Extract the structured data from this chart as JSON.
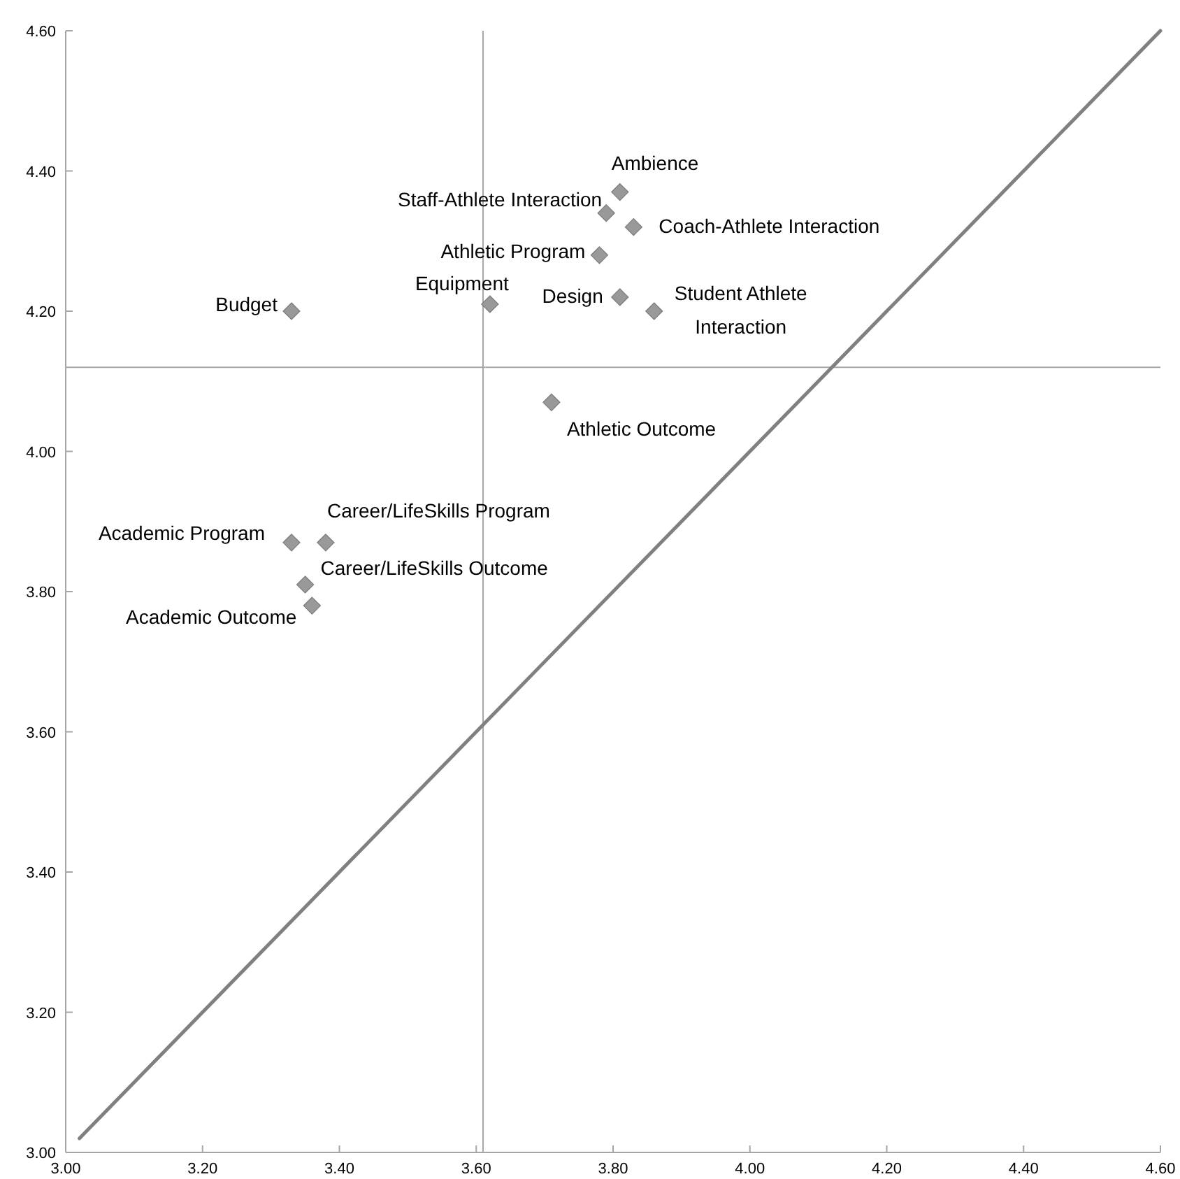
{
  "chart_data": {
    "type": "scatter",
    "xlim": [
      3.0,
      4.6
    ],
    "ylim": [
      3.0,
      4.6
    ],
    "xticks": [
      {
        "value": 3.0,
        "label": "3.00"
      },
      {
        "value": 3.2,
        "label": "3.20"
      },
      {
        "value": 3.4,
        "label": "3.40"
      },
      {
        "value": 3.6,
        "label": "3.60"
      },
      {
        "value": 3.8,
        "label": "3.80"
      },
      {
        "value": 4.0,
        "label": "4.00"
      },
      {
        "value": 4.2,
        "label": "4.20"
      },
      {
        "value": 4.4,
        "label": "4.40"
      },
      {
        "value": 4.6,
        "label": "4.60"
      }
    ],
    "yticks": [
      {
        "value": 3.0,
        "label": "3.00"
      },
      {
        "value": 3.2,
        "label": "3.20"
      },
      {
        "value": 3.4,
        "label": "3.40"
      },
      {
        "value": 3.6,
        "label": "3.60"
      },
      {
        "value": 3.8,
        "label": "3.80"
      },
      {
        "value": 4.0,
        "label": "4.00"
      },
      {
        "value": 4.2,
        "label": "4.20"
      },
      {
        "value": 4.4,
        "label": "4.40"
      },
      {
        "value": 4.6,
        "label": "4.60"
      }
    ],
    "ref_lines": [
      {
        "axis": "x",
        "value": 3.61,
        "color": "#a6a6a6"
      },
      {
        "axis": "y",
        "value": 4.12,
        "color": "#a6a6a6"
      }
    ],
    "series": [
      {
        "name": "Ambience",
        "color": "#999999",
        "marker": "diamond",
        "x": [
          3.81
        ],
        "values": [
          4.37
        ]
      },
      {
        "name": "Staff-Athlete Interaction",
        "color": "#999999",
        "marker": "diamond",
        "x": [
          3.79
        ],
        "values": [
          4.34
        ]
      },
      {
        "name": "Coach-Athlete Interaction",
        "color": "#999999",
        "marker": "diamond",
        "x": [
          3.83
        ],
        "values": [
          4.32
        ]
      },
      {
        "name": "Athletic Program",
        "color": "#999999",
        "marker": "diamond",
        "x": [
          3.78
        ],
        "values": [
          4.28
        ]
      },
      {
        "name": "Equipment",
        "color": "#999999",
        "marker": "diamond",
        "x": [
          3.62
        ],
        "values": [
          4.21
        ]
      },
      {
        "name": "Design",
        "color": "#999999",
        "marker": "diamond",
        "x": [
          3.81
        ],
        "values": [
          4.22
        ]
      },
      {
        "name": "Student Athlete Interaction",
        "color": "#999999",
        "marker": "diamond",
        "x": [
          3.86
        ],
        "values": [
          4.2
        ]
      },
      {
        "name": "Budget",
        "color": "#999999",
        "marker": "diamond",
        "x": [
          3.33
        ],
        "values": [
          4.2
        ]
      },
      {
        "name": "Athletic Outcome",
        "color": "#999999",
        "marker": "diamond",
        "x": [
          3.71
        ],
        "values": [
          4.07
        ]
      },
      {
        "name": "Academic Program",
        "color": "#999999",
        "marker": "diamond",
        "x": [
          3.33
        ],
        "values": [
          3.87
        ]
      },
      {
        "name": "Career/LifeSkills Program",
        "color": "#999999",
        "marker": "diamond",
        "x": [
          3.38
        ],
        "values": [
          3.87
        ]
      },
      {
        "name": "Career/LifeSkills Outcome",
        "color": "#999999",
        "marker": "diamond",
        "x": [
          3.35
        ],
        "values": [
          3.81
        ]
      },
      {
        "name": "Academic Outcome",
        "color": "#999999",
        "marker": "diamond",
        "x": [
          3.36
        ],
        "values": [
          3.78
        ]
      },
      {
        "type": "line",
        "color": "#808080",
        "x": [
          3.02,
          4.6
        ],
        "values": [
          3.02,
          4.6
        ]
      }
    ]
  }
}
